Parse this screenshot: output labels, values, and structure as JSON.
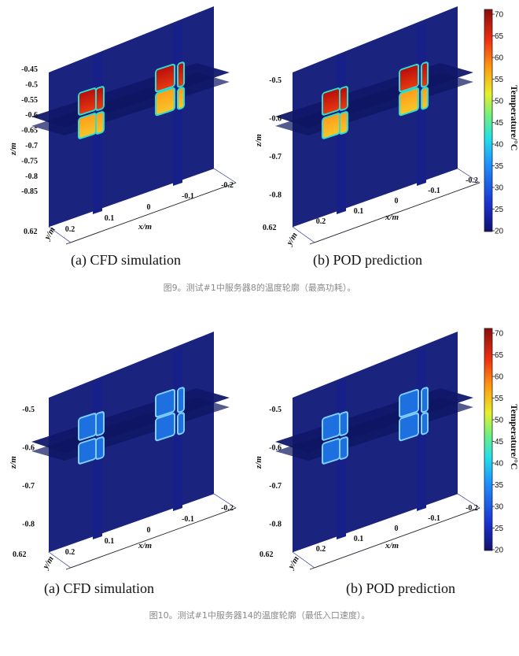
{
  "figures": [
    {
      "colorbar": {
        "label": "Temperature/°C",
        "ticks": [
          "70",
          "65",
          "60",
          "55",
          "50",
          "45",
          "40",
          "35",
          "30",
          "25",
          "20"
        ]
      },
      "panels": [
        {
          "sublabel": "(a) CFD simulation",
          "z_ticks": [
            "-0.45",
            "-0.5",
            "-0.55",
            "-0.6",
            "-0.65",
            "-0.7",
            "-0.75",
            "-0.8",
            "-0.85"
          ],
          "zlabel": "z/m",
          "xlabel": "x/m",
          "ylabel": "y/m",
          "x_ticks": [
            "-0.2",
            "-0.1",
            "0",
            "0.1",
            "0.2"
          ],
          "y_tick": "0.62"
        },
        {
          "sublabel": "(b) POD prediction",
          "z_ticks": [
            "-0.5",
            "-0.6",
            "-0.7",
            "-0.8"
          ],
          "zlabel": "z/m",
          "xlabel": "x/m",
          "ylabel": "y/m",
          "x_ticks": [
            "-0.2",
            "-0.1",
            "0",
            "0.1",
            "0.2"
          ],
          "y_tick": "0.62"
        }
      ],
      "caption": "图9。测试#1中服务器8的温度轮廓（最高功耗）。",
      "intensity": "hot"
    },
    {
      "colorbar": {
        "label": "Temperature/°C",
        "ticks": [
          "70",
          "65",
          "60",
          "55",
          "50",
          "45",
          "40",
          "35",
          "30",
          "25",
          "20"
        ]
      },
      "panels": [
        {
          "sublabel": "(a) CFD simulation",
          "z_ticks": [
            "-0.5",
            "-0.6",
            "-0.7",
            "-0.8"
          ],
          "zlabel": "z/m",
          "xlabel": "x/m",
          "ylabel": "y/m",
          "x_ticks": [
            "-0.2",
            "-0.1",
            "0",
            "0.1",
            "0.2"
          ],
          "y_tick": "0.62"
        },
        {
          "sublabel": "(b) POD prediction",
          "z_ticks": [
            "-0.5",
            "-0.6",
            "-0.7",
            "-0.8"
          ],
          "zlabel": "z/m",
          "xlabel": "x/m",
          "ylabel": "y/m",
          "x_ticks": [
            "-0.2",
            "-0.1",
            "0",
            "0.1",
            "0.2"
          ],
          "y_tick": "0.62"
        }
      ],
      "caption": "图10。测试#1中服务器14的温度轮廓（最低入口速度）。",
      "intensity": "cool"
    }
  ],
  "colors": {
    "bg_plane": "#1a237e",
    "plane_dark": "#11186a",
    "hot_top": "#c4120e",
    "hot_bottom": "#f7a21a",
    "cool_block": "#1e6fe0",
    "cool_edge": "#7fd0ff",
    "caption_gray": "#8a8a8a"
  }
}
